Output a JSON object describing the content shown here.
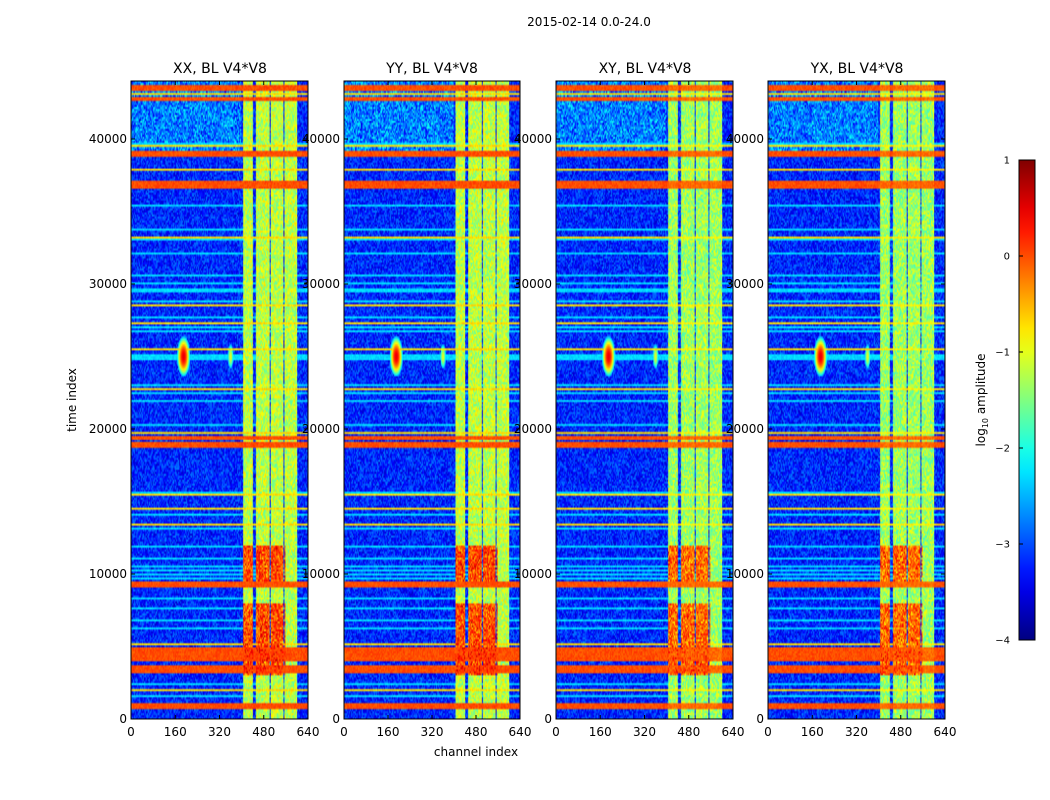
{
  "chart_data": {
    "type": "heatmap",
    "suptitle": "2015-02-14 0.0-24.0",
    "xlabel": "channel index",
    "ylabel": "time index",
    "xlim": [
      0,
      640
    ],
    "ylim": [
      0,
      44000
    ],
    "xticks": [
      0,
      160,
      320,
      480,
      640
    ],
    "yticks": [
      0,
      10000,
      20000,
      30000,
      40000
    ],
    "colorbar": {
      "label": "log10 amplitude",
      "label_base": "log",
      "label_sub": "10",
      "label_rest": " amplitude",
      "range": [
        -4,
        1
      ],
      "ticks": [
        "1",
        "0",
        "−1",
        "−2",
        "−3",
        "−4"
      ],
      "tick_values": [
        1,
        0,
        -1,
        -2,
        -3,
        -4
      ],
      "colormap": "jet"
    },
    "panels": [
      {
        "title": "XX, BL V4*V8",
        "pol": "XX"
      },
      {
        "title": "YY, BL V4*V8",
        "pol": "YY"
      },
      {
        "title": "XY, BL V4*V8",
        "pol": "XY"
      },
      {
        "title": "YX, BL V4*V8",
        "pol": "YX"
      }
    ],
    "features": {
      "rfi_bands_channels": [
        [
          405,
          440
        ],
        [
          450,
          500
        ],
        [
          505,
          550
        ],
        [
          555,
          600
        ]
      ],
      "rfi_band_level": -1.2,
      "background_level": -3.2,
      "upper_noise_region_time": [
        39000,
        44000
      ],
      "hot_spot": {
        "channel": 190,
        "time": 25000,
        "value": 0.5
      },
      "minor_spot": {
        "channel": 360,
        "time": 25000,
        "value": -1.0
      },
      "hot_blocks_time": [
        [
          3000,
          8000
        ],
        [
          9500,
          12000
        ]
      ],
      "strong_time_rows": [
        43500,
        42800,
        39000,
        37000,
        36700,
        19400,
        19000,
        18800,
        9300,
        4800,
        4500,
        4200,
        3600,
        3300,
        900
      ],
      "flag_rows_level": 0.2
    }
  }
}
